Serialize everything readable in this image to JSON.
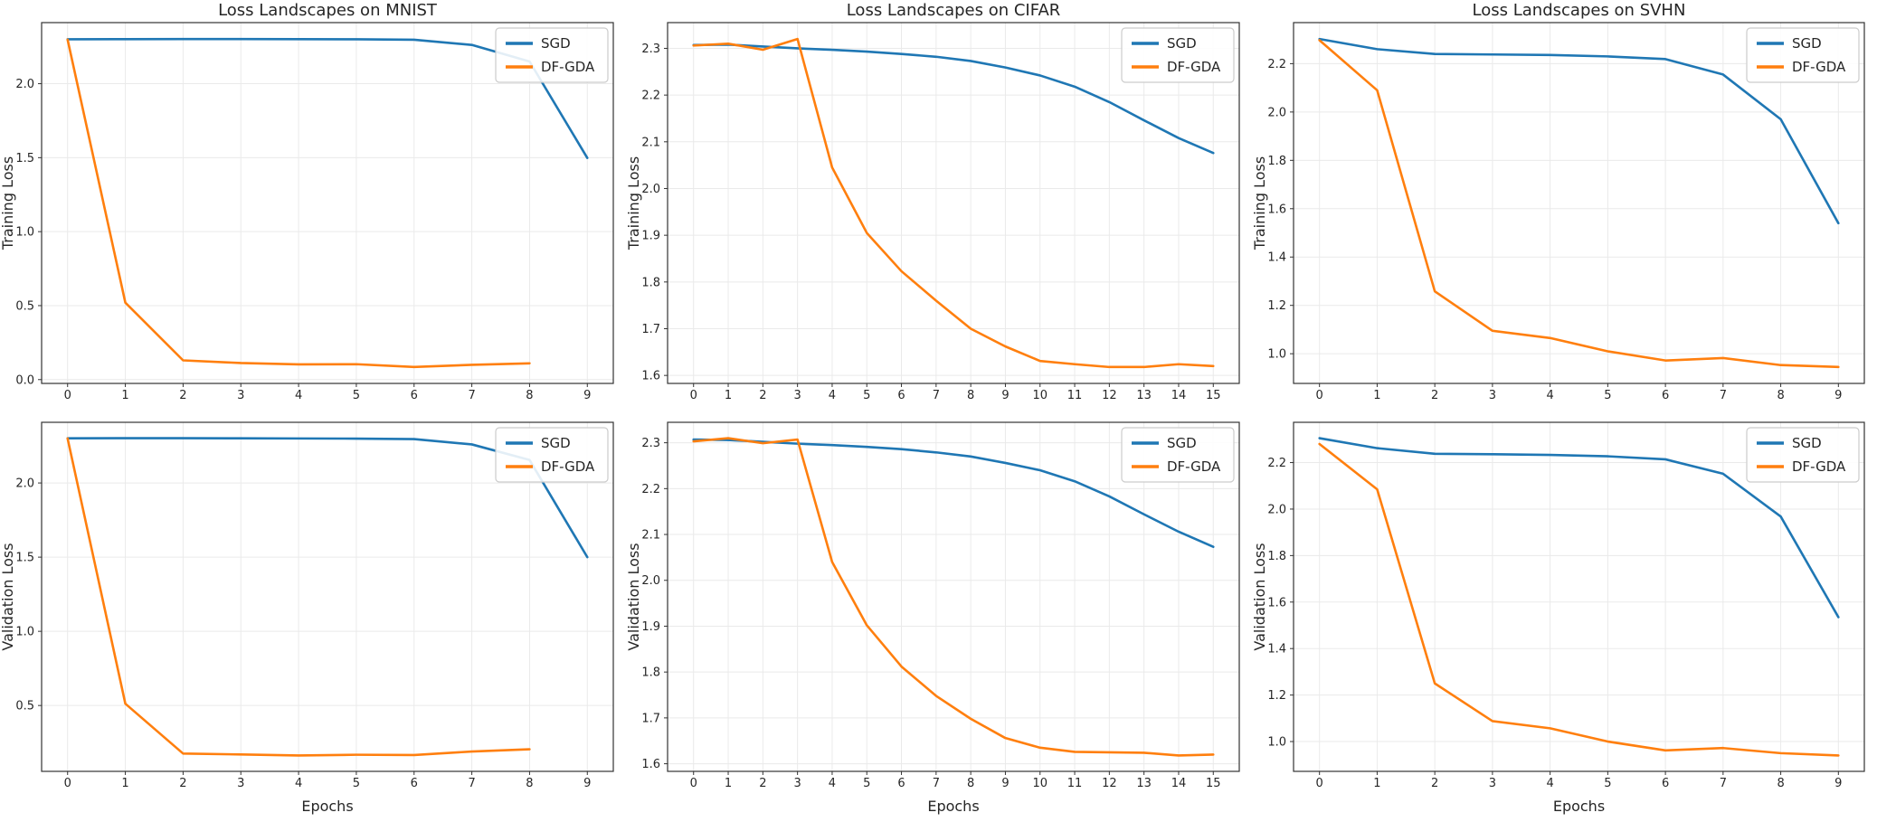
{
  "figure": {
    "xlabel": "Epochs",
    "legend_labels": [
      "SGD",
      "DF-GDA"
    ]
  },
  "colors": {
    "sgd": "#1f77b4",
    "dfgda": "#ff7f0e",
    "grid": "#eaeaea",
    "spine": "#333333",
    "text": "#262626",
    "legend_border": "#cccccc",
    "background": "#ffffff"
  },
  "chart_data": [
    {
      "type": "line",
      "id": "mnist-training",
      "title": "Loss Landscapes on MNIST",
      "xlabel": "",
      "ylabel": "Training Loss",
      "row": 0,
      "grid": true,
      "legend_position": "top-right",
      "xticks": [
        0,
        1,
        2,
        3,
        4,
        5,
        6,
        7,
        8,
        9
      ],
      "yticks": [
        0.0,
        0.5,
        1.0,
        1.5,
        2.0
      ],
      "series": [
        {
          "name": "SGD",
          "color": "#1f77b4",
          "x": [
            0,
            1,
            2,
            3,
            4,
            5,
            6,
            7,
            8,
            9
          ],
          "y": [
            2.3,
            2.301,
            2.302,
            2.302,
            2.301,
            2.3,
            2.297,
            2.262,
            2.15,
            1.498
          ]
        },
        {
          "name": "DF-GDA",
          "color": "#ff7f0e",
          "x": [
            0,
            1,
            2,
            3,
            4,
            5,
            6,
            7,
            8
          ],
          "y": [
            2.298,
            0.52,
            0.13,
            0.112,
            0.103,
            0.104,
            0.085,
            0.1,
            0.11
          ]
        }
      ]
    },
    {
      "type": "line",
      "id": "cifar-training",
      "title": "Loss Landscapes on CIFAR",
      "xlabel": "",
      "ylabel": "Training Loss",
      "row": 0,
      "grid": true,
      "legend_position": "top-right",
      "xticks": [
        0,
        1,
        2,
        3,
        4,
        5,
        6,
        7,
        8,
        9,
        10,
        11,
        12,
        13,
        14,
        15
      ],
      "yticks": [
        1.6,
        1.7,
        1.8,
        1.9,
        2.0,
        2.1,
        2.2,
        2.3
      ],
      "series": [
        {
          "name": "SGD",
          "color": "#1f77b4",
          "x": [
            0,
            1,
            2,
            3,
            4,
            5,
            6,
            7,
            8,
            9,
            10,
            11,
            12,
            13,
            14,
            15
          ],
          "y": [
            2.307,
            2.308,
            2.304,
            2.3,
            2.297,
            2.293,
            2.288,
            2.282,
            2.273,
            2.259,
            2.242,
            2.218,
            2.185,
            2.146,
            2.108,
            2.076
          ]
        },
        {
          "name": "DF-GDA",
          "color": "#ff7f0e",
          "x": [
            0,
            1,
            2,
            3,
            4,
            5,
            6,
            7,
            8,
            9,
            10,
            11,
            12,
            13,
            14,
            15
          ],
          "y": [
            2.306,
            2.31,
            2.297,
            2.32,
            2.045,
            1.905,
            1.823,
            1.76,
            1.7,
            1.662,
            1.631,
            1.624,
            1.618,
            1.618,
            1.624,
            1.62
          ]
        }
      ]
    },
    {
      "type": "line",
      "id": "svhn-training",
      "title": "Loss Landscapes on SVHN",
      "xlabel": "",
      "ylabel": "Training Loss",
      "row": 0,
      "grid": true,
      "legend_position": "top-right",
      "xticks": [
        0,
        1,
        2,
        3,
        4,
        5,
        6,
        7,
        8,
        9
      ],
      "yticks": [
        1.0,
        1.2,
        1.4,
        1.6,
        1.8,
        2.0,
        2.2
      ],
      "series": [
        {
          "name": "SGD",
          "color": "#1f77b4",
          "x": [
            0,
            1,
            2,
            3,
            4,
            5,
            6,
            7,
            8,
            9
          ],
          "y": [
            2.302,
            2.26,
            2.24,
            2.238,
            2.236,
            2.23,
            2.219,
            2.155,
            1.97,
            1.54
          ]
        },
        {
          "name": "DF-GDA",
          "color": "#ff7f0e",
          "x": [
            0,
            1,
            2,
            3,
            4,
            5,
            6,
            7,
            8,
            9
          ],
          "y": [
            2.297,
            2.09,
            1.258,
            1.095,
            1.065,
            1.01,
            0.972,
            0.982,
            0.953,
            0.945
          ]
        }
      ]
    },
    {
      "type": "line",
      "id": "mnist-validation",
      "title": "",
      "xlabel": "Epochs",
      "ylabel": "Validation Loss",
      "row": 1,
      "grid": true,
      "legend_position": "top-right",
      "xticks": [
        0,
        1,
        2,
        3,
        4,
        5,
        6,
        7,
        8,
        9
      ],
      "yticks": [
        0.5,
        1.0,
        1.5,
        2.0
      ],
      "series": [
        {
          "name": "SGD",
          "color": "#1f77b4",
          "x": [
            0,
            1,
            2,
            3,
            4,
            5,
            6,
            7,
            8,
            9
          ],
          "y": [
            2.301,
            2.302,
            2.302,
            2.301,
            2.3,
            2.299,
            2.296,
            2.26,
            2.155,
            1.5
          ]
        },
        {
          "name": "DF-GDA",
          "color": "#ff7f0e",
          "x": [
            0,
            1,
            2,
            3,
            4,
            5,
            6,
            7,
            8
          ],
          "y": [
            2.3,
            0.512,
            0.176,
            0.17,
            0.163,
            0.168,
            0.166,
            0.19,
            0.205
          ]
        }
      ]
    },
    {
      "type": "line",
      "id": "cifar-validation",
      "title": "",
      "xlabel": "Epochs",
      "ylabel": "Validation Loss",
      "row": 1,
      "grid": true,
      "legend_position": "top-right",
      "xticks": [
        0,
        1,
        2,
        3,
        4,
        5,
        6,
        7,
        8,
        9,
        10,
        11,
        12,
        13,
        14,
        15
      ],
      "yticks": [
        1.6,
        1.7,
        1.8,
        1.9,
        2.0,
        2.1,
        2.2,
        2.3
      ],
      "series": [
        {
          "name": "SGD",
          "color": "#1f77b4",
          "x": [
            0,
            1,
            2,
            3,
            4,
            5,
            6,
            7,
            8,
            9,
            10,
            11,
            12,
            13,
            14,
            15
          ],
          "y": [
            2.307,
            2.306,
            2.302,
            2.298,
            2.295,
            2.291,
            2.286,
            2.279,
            2.27,
            2.256,
            2.24,
            2.216,
            2.183,
            2.144,
            2.106,
            2.073
          ]
        },
        {
          "name": "DF-GDA",
          "color": "#ff7f0e",
          "x": [
            0,
            1,
            2,
            3,
            4,
            5,
            6,
            7,
            8,
            9,
            10,
            11,
            12,
            13,
            14,
            15
          ],
          "y": [
            2.303,
            2.31,
            2.299,
            2.307,
            2.04,
            1.902,
            1.812,
            1.748,
            1.698,
            1.656,
            1.635,
            1.626,
            1.625,
            1.624,
            1.618,
            1.62
          ]
        }
      ]
    },
    {
      "type": "line",
      "id": "svhn-validation",
      "title": "",
      "xlabel": "Epochs",
      "ylabel": "Validation Loss",
      "row": 1,
      "grid": true,
      "legend_position": "top-right",
      "xticks": [
        0,
        1,
        2,
        3,
        4,
        5,
        6,
        7,
        8,
        9
      ],
      "yticks": [
        1.0,
        1.2,
        1.4,
        1.6,
        1.8,
        2.0,
        2.2
      ],
      "series": [
        {
          "name": "SGD",
          "color": "#1f77b4",
          "x": [
            0,
            1,
            2,
            3,
            4,
            5,
            6,
            7,
            8,
            9
          ],
          "y": [
            2.305,
            2.262,
            2.238,
            2.236,
            2.233,
            2.227,
            2.214,
            2.152,
            1.968,
            1.535
          ]
        },
        {
          "name": "DF-GDA",
          "color": "#ff7f0e",
          "x": [
            0,
            1,
            2,
            3,
            4,
            5,
            6,
            7,
            8,
            9
          ],
          "y": [
            2.28,
            2.085,
            1.25,
            1.088,
            1.057,
            1.0,
            0.962,
            0.972,
            0.95,
            0.94
          ]
        }
      ]
    }
  ]
}
